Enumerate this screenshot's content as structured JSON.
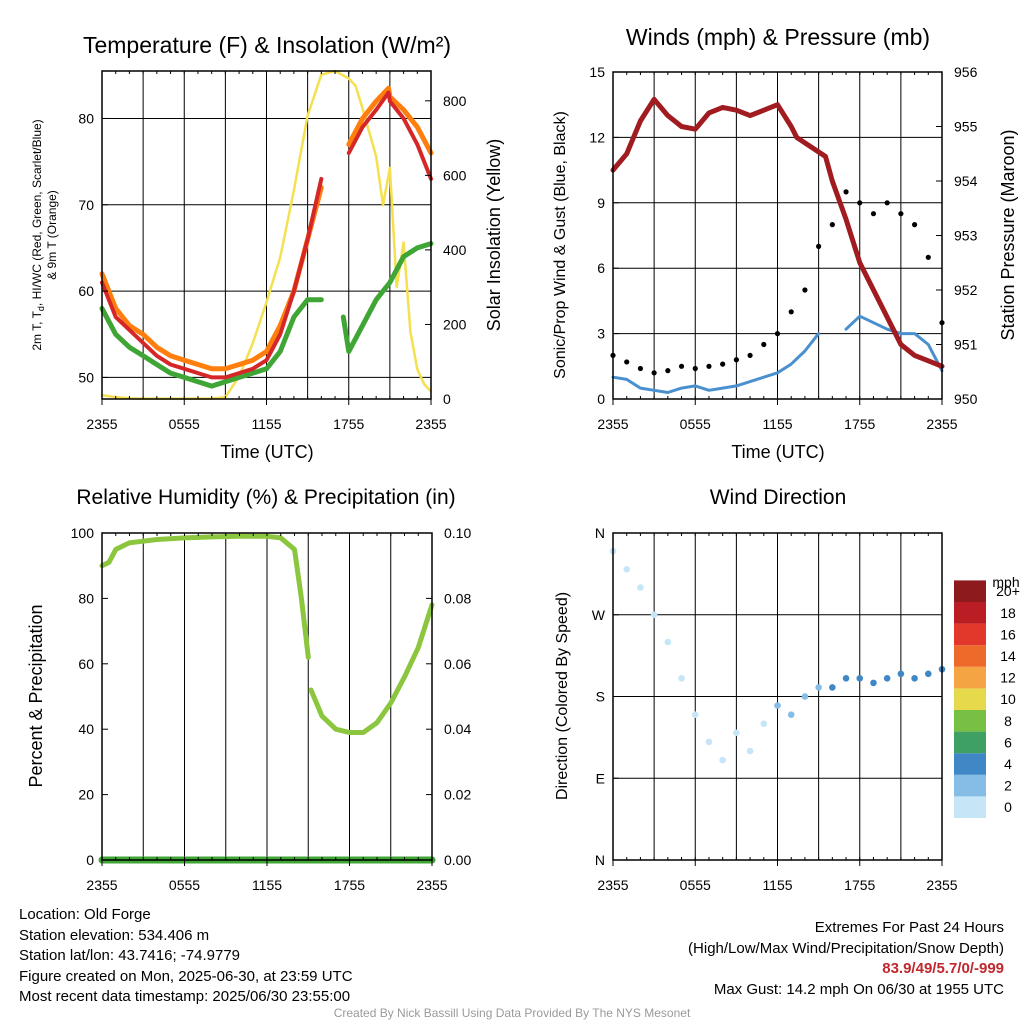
{
  "chart_data": [
    {
      "type": "line",
      "title": "Temperature (F) & Insolation (W/m²)",
      "xlabel": "Time (UTC)",
      "ylabel": "2m T, Td, HI/WC (Red, Green, Scarlet/Blue) & 9m T (Orange)",
      "ylabel_line1": "2m T, T",
      "ylabel_sub": "d",
      "ylabel_line1b": ", HI/WC (Red, Green, Scarlet/Blue)",
      "ylabel_line2": "& 9m T (Orange)",
      "y2label": "Solar Insolation (Yellow)",
      "x_ticks": [
        "2355",
        "0555",
        "1155",
        "1755",
        "2355"
      ],
      "ylim": [
        47.5,
        85.5
      ],
      "y_ticks": [
        "50",
        "60",
        "70",
        "80"
      ],
      "y2lim": [
        0,
        880
      ],
      "y2_ticks": [
        "0",
        "200",
        "400",
        "600",
        "800"
      ],
      "grid": true,
      "series": [
        {
          "key": "temp",
          "color": "#d62728",
          "x": [
            0,
            1,
            2,
            3,
            4,
            5,
            6,
            7,
            8,
            9,
            10,
            11,
            12,
            13,
            14,
            15,
            16,
            17,
            18,
            19,
            20,
            20.9,
            21,
            22,
            23,
            24
          ],
          "y": [
            61,
            57,
            55.5,
            54,
            52.5,
            51.5,
            51,
            50.5,
            50,
            50,
            50.5,
            51,
            52,
            55,
            60,
            66,
            73,
            null,
            76,
            79,
            81,
            83,
            82,
            80,
            77,
            73
          ]
        },
        {
          "key": "temp9m",
          "color": "#ff7f0e",
          "x": [
            0,
            1,
            2,
            3,
            4,
            5,
            6,
            7,
            8,
            9,
            10,
            11,
            12,
            13,
            14,
            15,
            16,
            17,
            18,
            19,
            20,
            20.9,
            21,
            22,
            23,
            24
          ],
          "y": [
            62,
            58,
            56,
            55,
            53.5,
            52.5,
            52,
            51.5,
            51,
            51,
            51.5,
            52,
            53,
            56,
            60,
            66,
            72,
            null,
            77,
            80,
            82,
            83.5,
            82.5,
            81,
            79,
            76
          ]
        },
        {
          "key": "dew",
          "color": "#3fa535",
          "x": [
            0,
            1,
            2,
            3,
            4,
            5,
            6,
            7,
            8,
            9,
            10,
            11,
            12,
            13,
            14,
            15,
            16,
            17,
            17.6,
            18,
            19,
            20,
            21,
            22,
            23,
            24
          ],
          "y": [
            58,
            55,
            53.5,
            52.5,
            51.5,
            50.5,
            50,
            49.5,
            49,
            49.5,
            50,
            50.5,
            51,
            53,
            57,
            59,
            59,
            null,
            57,
            53,
            56,
            59,
            61,
            64,
            65,
            65.5
          ]
        },
        {
          "key": "solar",
          "color": "#f5e050",
          "x": [
            0,
            1,
            2,
            3,
            4,
            5,
            6,
            7,
            8,
            9,
            10,
            11,
            12,
            13,
            14,
            15,
            16,
            17,
            18,
            18.5,
            19,
            20,
            20.5,
            21,
            21.5,
            22,
            22.5,
            23,
            23.5,
            24
          ],
          "y": [
            10,
            5,
            2,
            1,
            1,
            1,
            1,
            1,
            1,
            5,
            60,
            150,
            260,
            380,
            560,
            760,
            870,
            880,
            860,
            840,
            780,
            650,
            520,
            620,
            300,
            420,
            180,
            80,
            40,
            20
          ]
        }
      ]
    },
    {
      "type": "scatter",
      "title": "Winds (mph) & Pressure (mb)",
      "xlabel": "Time (UTC)",
      "ylabel": "Sonic/Prop Wind & Gust (Blue, Black)",
      "y2label": "Station Pressure (Maroon)",
      "x_ticks": [
        "2355",
        "0555",
        "1155",
        "1755",
        "2355"
      ],
      "ylim": [
        0,
        15
      ],
      "y_ticks": [
        "0",
        "3",
        "6",
        "9",
        "12",
        "15"
      ],
      "y2lim": [
        950,
        956
      ],
      "y2_ticks": [
        "950",
        "951",
        "952",
        "953",
        "954",
        "955",
        "956"
      ],
      "grid": true,
      "series": [
        {
          "key": "wind",
          "color": "#4a90cf",
          "x": [
            0,
            1,
            2,
            3,
            4,
            5,
            6,
            7,
            8,
            9,
            10,
            11,
            12,
            13,
            14,
            15,
            16,
            17,
            18,
            19,
            20,
            21,
            22,
            23,
            24
          ],
          "y": [
            1,
            0.9,
            0.5,
            0.4,
            0.3,
            0.5,
            0.6,
            0.4,
            0.5,
            0.6,
            0.8,
            1,
            1.2,
            1.6,
            2.2,
            3,
            null,
            3.2,
            3.8,
            3.5,
            3.2,
            3,
            3,
            2.5,
            1.3
          ]
        },
        {
          "key": "gust",
          "color": "#000000",
          "x": [
            0,
            1,
            2,
            3,
            4,
            5,
            6,
            7,
            8,
            9,
            10,
            11,
            12,
            13,
            14,
            15,
            16,
            17,
            18,
            19,
            20,
            21,
            22,
            23,
            24
          ],
          "y": [
            2,
            1.7,
            1.4,
            1.2,
            1.3,
            1.5,
            1.4,
            1.5,
            1.6,
            1.8,
            2,
            2.5,
            3,
            4,
            5,
            7,
            8,
            9.5,
            9,
            8.5,
            9,
            8.5,
            8,
            6.5,
            3.5
          ]
        },
        {
          "key": "pressure",
          "color": "#a01c20",
          "x": [
            0,
            1,
            2,
            3,
            4,
            5,
            6,
            7,
            8,
            9,
            10,
            11,
            12,
            13,
            13.4,
            15.5,
            16,
            17,
            18,
            19,
            20,
            21,
            22,
            23,
            24
          ],
          "y": [
            954.2,
            954.5,
            955.1,
            955.5,
            955.2,
            955.0,
            954.95,
            955.25,
            955.35,
            955.3,
            955.2,
            955.3,
            955.4,
            955.0,
            954.8,
            954.45,
            954.0,
            953.3,
            952.5,
            952.0,
            951.5,
            951.0,
            950.8,
            950.7,
            950.6
          ]
        }
      ]
    },
    {
      "type": "line",
      "title": "Relative Humidity (%) & Precipitation (in)",
      "xlabel": "",
      "ylabel": "Percent & Precipitation",
      "x_ticks": [
        "2355",
        "0555",
        "1155",
        "1755",
        "2355"
      ],
      "ylim": [
        0,
        100
      ],
      "y_ticks": [
        "0",
        "20",
        "40",
        "60",
        "80",
        "100"
      ],
      "y2lim": [
        0,
        0.1
      ],
      "y2_ticks": [
        "0.00",
        "0.02",
        "0.04",
        "0.06",
        "0.08",
        "0.10"
      ],
      "grid": true,
      "series": [
        {
          "key": "rh",
          "color": "#8cc63f",
          "x": [
            0,
            0.5,
            1,
            2,
            4,
            6,
            8,
            10,
            12,
            13,
            14,
            14.5,
            15,
            null,
            15.2,
            16,
            17,
            18,
            19,
            20,
            21,
            22,
            23,
            24
          ],
          "y": [
            90,
            91,
            95,
            97,
            98,
            98.5,
            98.8,
            99,
            99,
            98.5,
            95,
            80,
            62,
            null,
            52,
            44,
            40,
            39,
            39,
            42,
            48,
            56,
            65,
            78
          ]
        },
        {
          "key": "precip",
          "color": "#3fa535",
          "x": [
            0,
            24
          ],
          "y": [
            0,
            0
          ]
        }
      ]
    },
    {
      "type": "scatter",
      "title": "Wind Direction",
      "ylabel": "Direction (Colored By Speed)",
      "x_ticks": [
        "2355",
        "0555",
        "1155",
        "1755",
        "2355"
      ],
      "y_ticks": [
        "N",
        "E",
        "S",
        "W",
        "N"
      ],
      "ylim": [
        0,
        360
      ],
      "grid": true,
      "colorbar": {
        "unit": "mph",
        "labels": [
          "0",
          "2",
          "4",
          "6",
          "8",
          "10",
          "12",
          "14",
          "16",
          "18",
          "20+"
        ],
        "colors": [
          "#c6e6f7",
          "#85bde6",
          "#3f88c5",
          "#3ea063",
          "#78c044",
          "#e6d94c",
          "#f5a443",
          "#ed6a2b",
          "#e1382b",
          "#bb1d24",
          "#8d1b1e"
        ]
      },
      "series": [
        {
          "key": "dir",
          "x": [
            0,
            1,
            2,
            3,
            4,
            5,
            6,
            7,
            8,
            9,
            10,
            11,
            12,
            13,
            14,
            15,
            16,
            17,
            18,
            19,
            20,
            21,
            22,
            23,
            24
          ],
          "y": [
            340,
            320,
            300,
            270,
            240,
            200,
            160,
            130,
            110,
            140,
            120,
            150,
            170,
            160,
            180,
            190,
            190,
            200,
            200,
            195,
            200,
            205,
            200,
            205,
            210
          ]
        }
      ]
    }
  ],
  "footer_left": [
    "Location: Old Forge",
    "Station elevation: 534.406 m",
    "Station lat/lon: 43.7416; -74.9779",
    "Figure created on Mon, 2025-06-30, at 23:59 UTC",
    "Most recent data timestamp: 2025/06/30 23:55:00"
  ],
  "footer_right": {
    "title": "Extremes For Past 24 Hours",
    "subtitle": "(High/Low/Max Wind/Precipitation/Snow Depth)",
    "values": "83.9/49/5.7/0/-999",
    "gust": "Max Gust: 14.2 mph On 06/30 at 1955 UTC",
    "color": "#c0282d"
  },
  "credit": "Created By Nick Bassill Using Data Provided By The NYS Mesonet"
}
